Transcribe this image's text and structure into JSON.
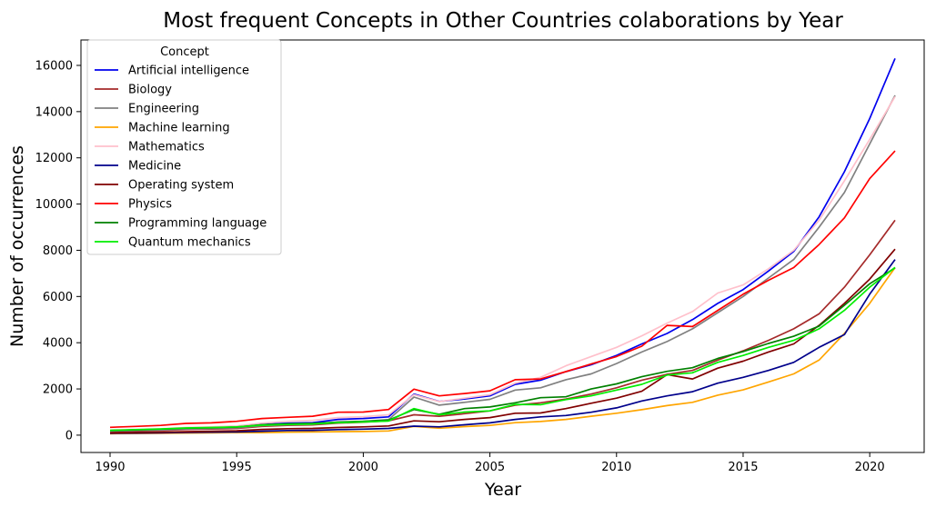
{
  "chart_data": {
    "type": "line",
    "title": "Most frequent Concepts in Other Countries colaborations by Year",
    "xlabel": "Year",
    "ylabel": "Number of occurrences",
    "xlim": [
      1988.85,
      2022.15
    ],
    "ylim": [
      -750,
      17100
    ],
    "xticks": [
      1990,
      1995,
      2000,
      2005,
      2010,
      2015,
      2020
    ],
    "yticks": [
      0,
      2000,
      4000,
      6000,
      8000,
      10000,
      12000,
      14000,
      16000
    ],
    "grid": false,
    "legend_title": "Concept",
    "legend_position": "upper-left",
    "x": [
      1990,
      1991,
      1992,
      1993,
      1994,
      1995,
      1996,
      1997,
      1998,
      1999,
      2000,
      2001,
      2002,
      2003,
      2004,
      2005,
      2006,
      2007,
      2008,
      2009,
      2010,
      2011,
      2012,
      2013,
      2014,
      2015,
      2016,
      2017,
      2018,
      2019,
      2020,
      2021
    ],
    "series": [
      {
        "name": "Artificial intelligence",
        "color": "#0000ee",
        "values": [
          190,
          210,
          240,
          290,
          320,
          360,
          460,
          520,
          540,
          680,
          720,
          790,
          1780,
          1460,
          1560,
          1700,
          2200,
          2380,
          2750,
          3050,
          3450,
          3950,
          4400,
          5000,
          5700,
          6300,
          7100,
          7950,
          9450,
          11400,
          13700,
          16300
        ]
      },
      {
        "name": "Biology",
        "color": "#a52a2a",
        "values": [
          150,
          180,
          200,
          250,
          270,
          290,
          380,
          420,
          440,
          520,
          560,
          620,
          880,
          820,
          930,
          1050,
          1300,
          1400,
          1560,
          1780,
          2050,
          2380,
          2630,
          2800,
          3250,
          3650,
          4100,
          4600,
          5250,
          6400,
          7800,
          9300
        ]
      },
      {
        "name": "Engineering",
        "color": "#808080",
        "values": [
          170,
          200,
          220,
          270,
          290,
          320,
          410,
          450,
          470,
          570,
          600,
          670,
          1650,
          1300,
          1420,
          1550,
          1950,
          2050,
          2400,
          2650,
          3100,
          3600,
          4050,
          4600,
          5300,
          6000,
          6800,
          7600,
          9000,
          10500,
          12600,
          14700
        ]
      },
      {
        "name": "Machine learning",
        "color": "#ffa500",
        "values": [
          60,
          70,
          80,
          90,
          100,
          110,
          110,
          130,
          140,
          150,
          160,
          180,
          380,
          300,
          370,
          420,
          540,
          590,
          680,
          820,
          950,
          1100,
          1280,
          1420,
          1730,
          1960,
          2300,
          2650,
          3250,
          4400,
          5700,
          7250
        ]
      },
      {
        "name": "Mathematics",
        "color": "#ffc0cb",
        "values": [
          220,
          250,
          280,
          330,
          360,
          400,
          520,
          600,
          640,
          760,
          800,
          880,
          1750,
          1450,
          1600,
          1750,
          2250,
          2500,
          3000,
          3400,
          3800,
          4300,
          4850,
          5350,
          6150,
          6500,
          7200,
          8000,
          9300,
          11000,
          12800,
          14650
        ]
      },
      {
        "name": "Medicine",
        "color": "#00008b",
        "values": [
          80,
          90,
          100,
          120,
          130,
          140,
          170,
          200,
          210,
          240,
          260,
          290,
          390,
          360,
          450,
          530,
          680,
          790,
          850,
          990,
          1180,
          1480,
          1700,
          1880,
          2250,
          2500,
          2800,
          3150,
          3800,
          4350,
          6100,
          7600
        ]
      },
      {
        "name": "Operating system",
        "color": "#800000",
        "values": [
          100,
          120,
          130,
          150,
          170,
          190,
          250,
          280,
          290,
          330,
          360,
          400,
          620,
          580,
          680,
          760,
          950,
          960,
          1150,
          1380,
          1600,
          1900,
          2620,
          2430,
          2900,
          3200,
          3600,
          3950,
          4750,
          5700,
          6750,
          8050
        ]
      },
      {
        "name": "Physics",
        "color": "#ff0000",
        "values": [
          340,
          380,
          420,
          510,
          530,
          600,
          720,
          770,
          820,
          990,
          1000,
          1110,
          1990,
          1700,
          1800,
          1920,
          2400,
          2430,
          2750,
          3080,
          3400,
          3850,
          4750,
          4700,
          5400,
          6100,
          6700,
          7250,
          8250,
          9400,
          11100,
          12300
        ]
      },
      {
        "name": "Programming language",
        "color": "#008000",
        "values": [
          200,
          230,
          260,
          300,
          320,
          350,
          450,
          490,
          510,
          560,
          600,
          650,
          1110,
          900,
          1150,
          1220,
          1400,
          1620,
          1660,
          2000,
          2220,
          2530,
          2760,
          2920,
          3320,
          3620,
          3970,
          4280,
          4720,
          5620,
          6550,
          7240
        ]
      },
      {
        "name": "Quantum mechanics",
        "color": "#00ee00",
        "values": [
          210,
          240,
          270,
          310,
          330,
          360,
          430,
          460,
          480,
          540,
          570,
          610,
          1150,
          880,
          1000,
          1050,
          1330,
          1320,
          1540,
          1700,
          1950,
          2200,
          2600,
          2700,
          3150,
          3450,
          3800,
          4100,
          4600,
          5400,
          6400,
          7260
        ]
      }
    ]
  }
}
